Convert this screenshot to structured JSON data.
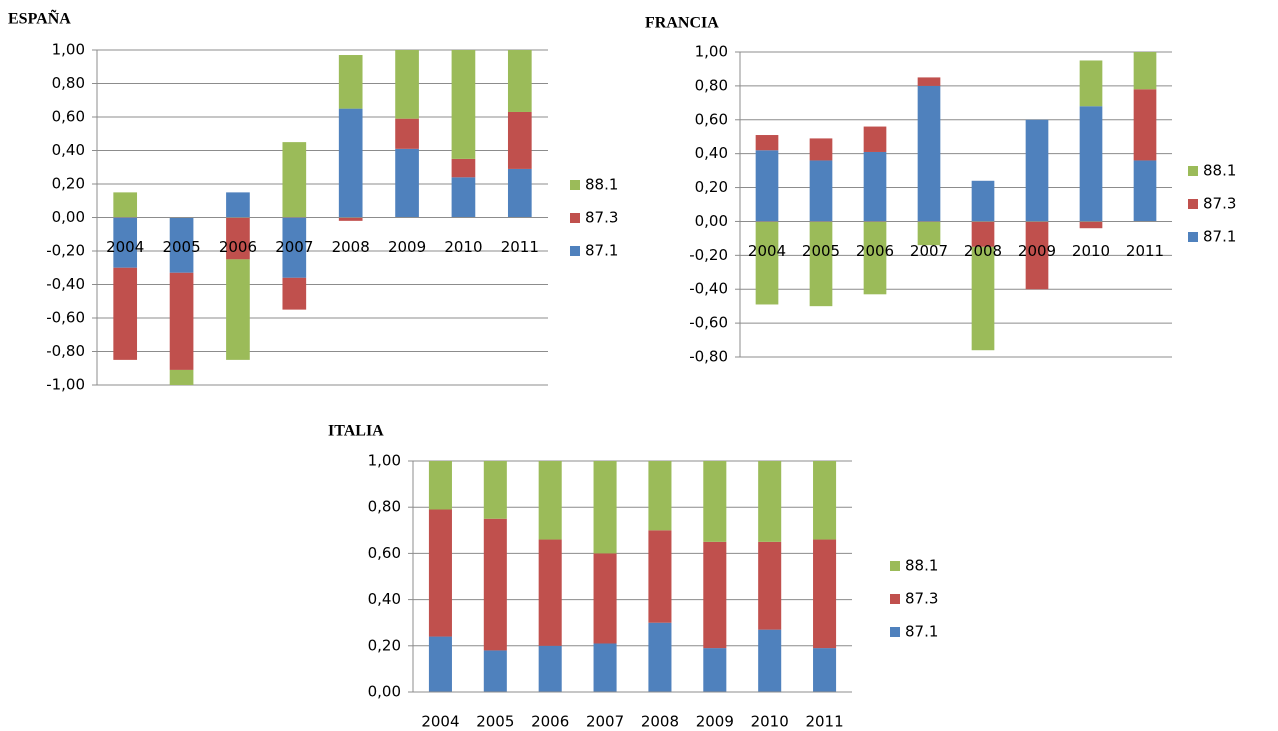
{
  "chart_data": [
    {
      "type": "bar",
      "stacked": true,
      "title": "ESPAÑA",
      "grid": true,
      "categories": [
        "2004",
        "2005",
        "2006",
        "2007",
        "2008",
        "2009",
        "2010",
        "2011"
      ],
      "series": [
        {
          "name": "87.1",
          "color": "#4f81bd",
          "values": [
            -0.3,
            -0.33,
            0.15,
            -0.36,
            0.65,
            0.41,
            0.24,
            0.29
          ]
        },
        {
          "name": "87.3",
          "color": "#c0504d",
          "values": [
            -0.55,
            -0.58,
            -0.25,
            -0.19,
            -0.02,
            0.18,
            0.11,
            0.34
          ]
        },
        {
          "name": "88.1",
          "color": "#9bbb59",
          "values": [
            0.15,
            -0.09,
            -0.6,
            0.45,
            0.32,
            0.41,
            0.65,
            0.37
          ]
        }
      ],
      "ylim": [
        -1,
        1
      ],
      "yticks": [
        {
          "value": 1,
          "label": "1,00"
        },
        {
          "value": 0.8,
          "label": "0,80"
        },
        {
          "value": 0.6,
          "label": "0,60"
        },
        {
          "value": 0.4,
          "label": "0,40"
        },
        {
          "value": 0.2,
          "label": "0,20"
        },
        {
          "value": 0,
          "label": "0,00"
        },
        {
          "value": -0.2,
          "label": "-0,20"
        },
        {
          "value": -0.4,
          "label": "-0,40"
        },
        {
          "value": -0.6,
          "label": "-0,60"
        },
        {
          "value": -0.8,
          "label": "-0,80"
        },
        {
          "value": -1,
          "label": "-1,00"
        }
      ]
    },
    {
      "type": "bar",
      "stacked": true,
      "title": "FRANCIA",
      "grid": true,
      "categories": [
        "2004",
        "2005",
        "2006",
        "2007",
        "2008",
        "2009",
        "2010",
        "2011"
      ],
      "series": [
        {
          "name": "87.1",
          "color": "#4f81bd",
          "values": [
            0.42,
            0.36,
            0.41,
            0.8,
            0.24,
            0.6,
            0.68,
            0.36
          ]
        },
        {
          "name": "87.3",
          "color": "#c0504d",
          "values": [
            0.09,
            0.13,
            0.15,
            0.05,
            -0.15,
            -0.4,
            -0.04,
            0.42
          ]
        },
        {
          "name": "88.1",
          "color": "#9bbb59",
          "values": [
            -0.49,
            -0.5,
            -0.43,
            -0.14,
            -0.61,
            0,
            0.27,
            0.22
          ]
        }
      ],
      "ylim": [
        -0.8,
        1
      ],
      "yticks": [
        {
          "value": 1,
          "label": "1,00"
        },
        {
          "value": 0.8,
          "label": "0,80"
        },
        {
          "value": 0.6,
          "label": "0,60"
        },
        {
          "value": 0.4,
          "label": "0,40"
        },
        {
          "value": 0.2,
          "label": "0,20"
        },
        {
          "value": 0,
          "label": "0,00"
        },
        {
          "value": -0.2,
          "label": "-0,20"
        },
        {
          "value": -0.4,
          "label": "-0,40"
        },
        {
          "value": -0.6,
          "label": "-0,60"
        },
        {
          "value": -0.8,
          "label": "-0,80"
        }
      ]
    },
    {
      "type": "bar",
      "stacked": true,
      "title": "ITALIA",
      "grid": true,
      "categories": [
        "2004",
        "2005",
        "2006",
        "2007",
        "2008",
        "2009",
        "2010",
        "2011"
      ],
      "series": [
        {
          "name": "87.1",
          "color": "#4f81bd",
          "values": [
            0.24,
            0.18,
            0.2,
            0.21,
            0.3,
            0.19,
            0.27,
            0.19
          ]
        },
        {
          "name": "87.3",
          "color": "#c0504d",
          "values": [
            0.55,
            0.57,
            0.46,
            0.39,
            0.4,
            0.46,
            0.38,
            0.47
          ]
        },
        {
          "name": "88.1",
          "color": "#9bbb59",
          "values": [
            0.21,
            0.25,
            0.34,
            0.4,
            0.3,
            0.35,
            0.35,
            0.34
          ]
        }
      ],
      "ylim": [
        0,
        1
      ],
      "yticks": [
        {
          "value": 1,
          "label": "1,00"
        },
        {
          "value": 0.8,
          "label": "0,80"
        },
        {
          "value": 0.6,
          "label": "0,60"
        },
        {
          "value": 0.4,
          "label": "0,40"
        },
        {
          "value": 0.2,
          "label": "0,20"
        },
        {
          "value": 0,
          "label": "0,00"
        }
      ]
    }
  ]
}
